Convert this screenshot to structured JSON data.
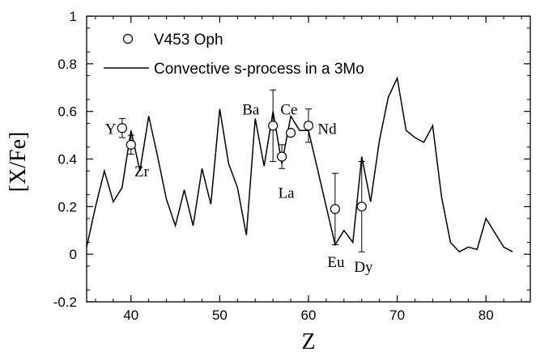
{
  "chart_data": {
    "type": "line",
    "xlabel": "Z",
    "ylabel": "[X/Fe]",
    "xlim": [
      35,
      85
    ],
    "ylim": [
      -0.2,
      1.0
    ],
    "x_ticks": [
      "40",
      "50",
      "60",
      "70",
      "80"
    ],
    "y_ticks": [
      "-0.2",
      "0",
      "0.2",
      "0.4",
      "0.6",
      "0.8",
      "1"
    ],
    "x_tick_values": [
      40,
      50,
      60,
      70,
      80
    ],
    "y_tick_values": [
      -0.2,
      0,
      0.2,
      0.4,
      0.6,
      0.8,
      1.0
    ],
    "legend": {
      "placement": "top-left",
      "entries": [
        {
          "label": "V453 Oph",
          "marker": "open-circle"
        },
        {
          "label": "Convective s-process in a 3Mo",
          "marker": "line"
        }
      ]
    },
    "model_line": {
      "name": "Convective s-process in a 3Mo",
      "x": [
        35,
        36,
        37,
        38,
        39,
        40,
        41,
        42,
        43,
        44,
        45,
        46,
        47,
        48,
        49,
        50,
        51,
        52,
        53,
        54,
        55,
        56,
        57,
        58,
        59,
        60,
        61,
        62,
        63,
        64,
        65,
        66,
        67,
        68,
        69,
        70,
        71,
        72,
        73,
        74,
        75,
        76,
        77,
        78,
        79,
        80,
        81,
        82,
        83
      ],
      "y": [
        0.03,
        0.2,
        0.35,
        0.22,
        0.28,
        0.52,
        0.35,
        0.58,
        0.41,
        0.23,
        0.12,
        0.27,
        0.12,
        0.36,
        0.21,
        0.61,
        0.38,
        0.28,
        0.08,
        0.57,
        0.37,
        0.6,
        0.38,
        0.58,
        0.52,
        0.52,
        0.36,
        0.2,
        0.04,
        0.1,
        0.05,
        0.41,
        0.22,
        0.48,
        0.66,
        0.74,
        0.52,
        0.49,
        0.47,
        0.54,
        0.24,
        0.05,
        0.01,
        0.03,
        0.02,
        0.15,
        0.09,
        0.03,
        0.01
      ]
    },
    "observed": {
      "name": "V453 Oph",
      "points": [
        {
          "element": "Y",
          "z": 39,
          "value": 0.53,
          "err": 0.04
        },
        {
          "element": "Zr",
          "z": 40,
          "value": 0.46,
          "err": 0.04
        },
        {
          "element": "Ba",
          "z": 56,
          "value": 0.54,
          "err": 0.15
        },
        {
          "element": "La",
          "z": 57,
          "value": 0.41,
          "err": 0.05
        },
        {
          "element": "Ce",
          "z": 58,
          "value": 0.51,
          "err": 0.0
        },
        {
          "element": "Nd",
          "z": 60,
          "value": 0.54,
          "err": 0.07
        },
        {
          "element": "Eu",
          "z": 63,
          "value": 0.19,
          "err": 0.15
        },
        {
          "element": "Dy",
          "z": 66,
          "value": 0.2,
          "err": 0.19
        }
      ]
    },
    "element_labels": [
      {
        "text": "Y",
        "x": 37.7,
        "y": 0.53
      },
      {
        "text": "Zr",
        "x": 41.2,
        "y": 0.35
      },
      {
        "text": "Ba",
        "x": 53.5,
        "y": 0.61
      },
      {
        "text": "Ce",
        "x": 57.8,
        "y": 0.61
      },
      {
        "text": "La",
        "x": 57.5,
        "y": 0.26
      },
      {
        "text": "Nd",
        "x": 62.1,
        "y": 0.53
      },
      {
        "text": "Eu",
        "x": 63.1,
        "y": -0.03
      },
      {
        "text": "Dy",
        "x": 66.2,
        "y": -0.05
      }
    ],
    "grid": false
  }
}
